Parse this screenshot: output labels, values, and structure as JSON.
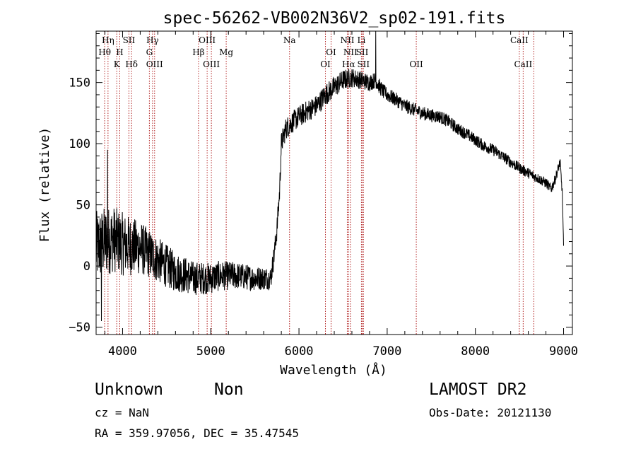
{
  "chart_data": {
    "type": "line",
    "title": "spec-56262-VB002N36V2_sp02-191.fits",
    "xlabel": "Wavelength (Å)",
    "ylabel": "Flux (relative)",
    "xlim": [
      3700,
      9100
    ],
    "ylim": [
      -56,
      192
    ],
    "xticks": [
      4000,
      5000,
      6000,
      7000,
      8000,
      9000
    ],
    "yticks": [
      -50,
      0,
      50,
      100,
      150
    ],
    "xtick_labels": [
      "4000",
      "5000",
      "6000",
      "7000",
      "8000",
      "9000"
    ],
    "ytick_labels": [
      "−50",
      "0",
      "50",
      "100",
      "150"
    ],
    "grid": false,
    "line_color": "#000000",
    "marker_color": "#b22222",
    "spectrum": {
      "x": [
        3700,
        3800,
        3900,
        4000,
        4100,
        4200,
        4300,
        4400,
        4500,
        4600,
        4700,
        4800,
        4900,
        5000,
        5100,
        5200,
        5300,
        5400,
        5500,
        5600,
        5680,
        5720,
        5750,
        5780,
        5800,
        5850,
        5900,
        6000,
        6100,
        6200,
        6300,
        6400,
        6500,
        6600,
        6700,
        6800,
        6870,
        6900,
        6950,
        7000,
        7100,
        7200,
        7300,
        7400,
        7500,
        7600,
        7700,
        7800,
        7900,
        8000,
        8100,
        8200,
        8300,
        8400,
        8500,
        8600,
        8700,
        8800,
        8860,
        8900,
        8960,
        8985,
        9000
      ],
      "y": [
        15,
        20,
        22,
        18,
        16,
        15,
        10,
        5,
        0,
        -5,
        -7,
        -10,
        -10,
        -10,
        -8,
        -8,
        -8,
        -9,
        -10,
        -10,
        -10,
        10,
        30,
        60,
        100,
        112,
        116,
        122,
        127,
        131,
        140,
        146,
        152,
        154,
        152,
        150,
        152,
        148,
        143,
        140,
        136,
        131,
        128,
        125,
        123,
        122,
        118,
        112,
        108,
        103,
        98,
        95,
        90,
        85,
        80,
        76,
        72,
        68,
        63,
        70,
        85,
        60,
        15
      ]
    },
    "noise_amplitude": [
      {
        "x": 3700,
        "a": 30
      },
      {
        "x": 4000,
        "a": 26
      },
      {
        "x": 4300,
        "a": 20
      },
      {
        "x": 4800,
        "a": 14
      },
      {
        "x": 5700,
        "a": 9
      },
      {
        "x": 5800,
        "a": 9
      },
      {
        "x": 6400,
        "a": 9
      },
      {
        "x": 7000,
        "a": 6
      },
      {
        "x": 9000,
        "a": 4
      }
    ],
    "spikes": [
      {
        "x": 3830,
        "y": 95
      },
      {
        "x": 3760,
        "y": -45
      },
      {
        "x": 6870,
        "y": 192
      }
    ],
    "lines": [
      {
        "label": "Hη",
        "wavelength": 3835,
        "row": 0
      },
      {
        "label": "Hθ",
        "wavelength": 3797,
        "row": 1
      },
      {
        "label": "SII",
        "wavelength": 4072,
        "row": 0
      },
      {
        "label": "H",
        "wavelength": 3968,
        "row": 1
      },
      {
        "label": "K",
        "wavelength": 3934,
        "row": 2
      },
      {
        "label": "Hδ",
        "wavelength": 4102,
        "row": 2
      },
      {
        "label": "Hγ",
        "wavelength": 4340,
        "row": 0
      },
      {
        "label": "G",
        "wavelength": 4304,
        "row": 1
      },
      {
        "label": "OIII",
        "wavelength": 4363,
        "row": 2
      },
      {
        "label": "OIII",
        "wavelength": 4959,
        "row": 0
      },
      {
        "label": "Hβ",
        "wavelength": 4861,
        "row": 1
      },
      {
        "label": "OIII",
        "wavelength": 5007,
        "row": 2
      },
      {
        "label": "Mg",
        "wavelength": 5175,
        "row": 1
      },
      {
        "label": "Na",
        "wavelength": 5893,
        "row": 0
      },
      {
        "label": "OI",
        "wavelength": 6364,
        "row": 1
      },
      {
        "label": "OI",
        "wavelength": 6300,
        "row": 2
      },
      {
        "label": "NII",
        "wavelength": 6548,
        "row": 0
      },
      {
        "label": "NII",
        "wavelength": 6583,
        "row": 1
      },
      {
        "label": "Hα",
        "wavelength": 6563,
        "row": 2
      },
      {
        "label": "Li",
        "wavelength": 6708,
        "row": 0
      },
      {
        "label": "SII",
        "wavelength": 6717,
        "row": 1
      },
      {
        "label": "SII",
        "wavelength": 6731,
        "row": 2
      },
      {
        "label": "OII",
        "wavelength": 7330,
        "row": 2
      },
      {
        "label": "CaII",
        "wavelength": 8498,
        "row": 0
      },
      {
        "label": "CaII",
        "wavelength": 8542,
        "row": 2
      },
      {
        "label": "",
        "wavelength": 8662,
        "row": 2
      }
    ]
  },
  "footer": {
    "class_label": "Unknown",
    "subclass_label": "Non",
    "cz": "cz = NaN",
    "radec": "RA = 359.97056, DEC =  35.47545",
    "survey": "LAMOST DR2",
    "obs_date": "Obs-Date: 20121130"
  }
}
